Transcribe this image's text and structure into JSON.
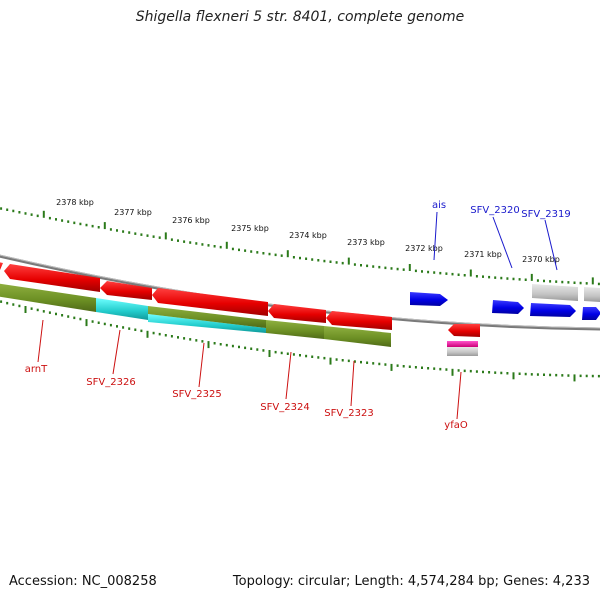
{
  "title": "Shigella flexneri 5 str. 8401, complete genome",
  "footer": {
    "accession": "Accession: NC_008258",
    "summary": "Topology: circular; Length: 4,574,284 bp; Genes: 4,233"
  },
  "scale_labels": [
    "2378 kbp",
    "2377 kbp",
    "2376 kbp",
    "2375 kbp",
    "2374 kbp",
    "2373 kbp",
    "2372 kbp",
    "2371 kbp",
    "2370 kbp"
  ],
  "gene_labels": {
    "blue": [
      "ais",
      "SFV_2320",
      "SFV_2319"
    ],
    "red": [
      "arnT",
      "SFV_2326",
      "SFV_2325",
      "SFV_2324",
      "SFV_2323",
      "yfaO"
    ]
  },
  "colors": {
    "forward_cds": "#0000ee",
    "reverse_cds": "#ee0000",
    "forward_label": "#1a1acc",
    "reverse_label": "#cc1010",
    "backbone": "#888888",
    "tick": "#2b7a1a",
    "olive": "#6b8e23",
    "cyan": "#22cccc",
    "pseudo": "#c0c0c0",
    "magenta": "#ee1199"
  }
}
